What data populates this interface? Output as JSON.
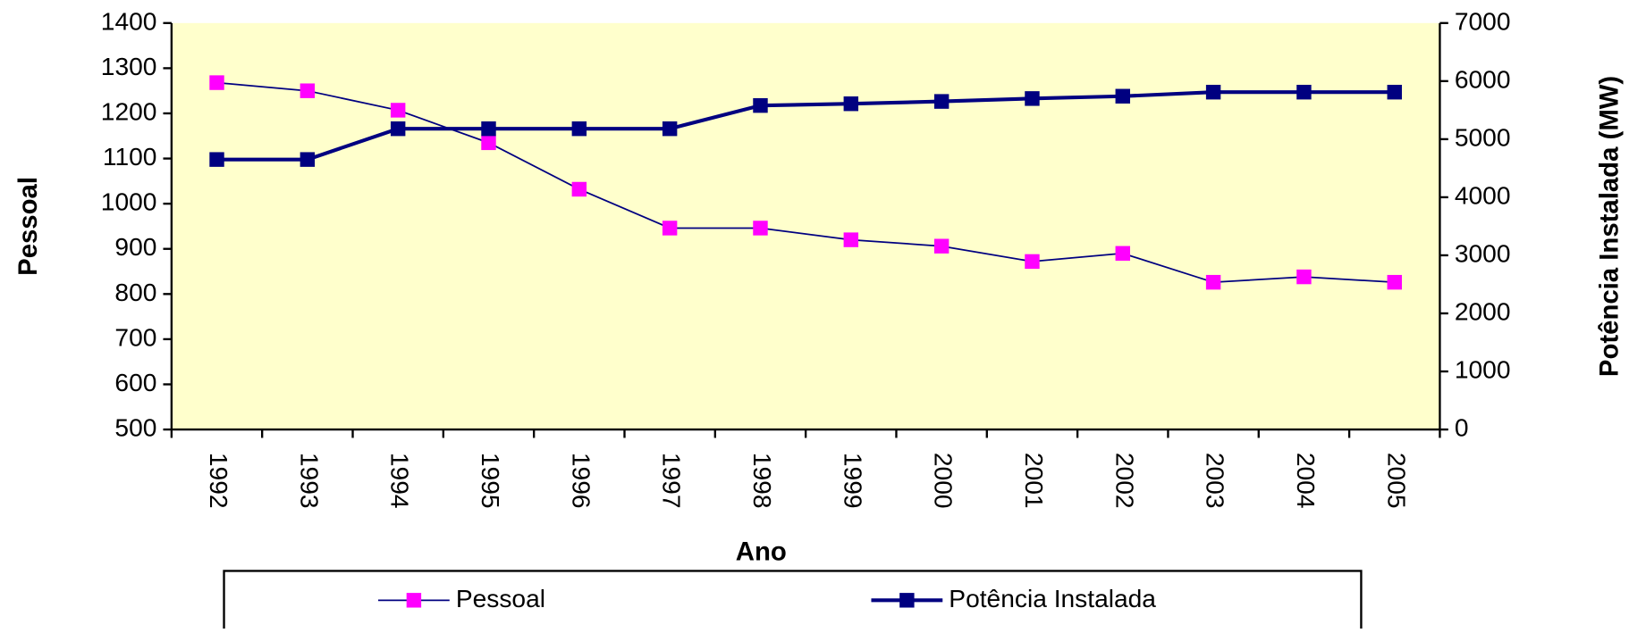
{
  "chart_data": {
    "type": "line",
    "xlabel": "Ano",
    "ylabel": "Pessoal",
    "y2label": "Potência Instalada (MW)",
    "categories": [
      "1992",
      "1993",
      "1994",
      "1995",
      "1996",
      "1997",
      "1998",
      "1999",
      "2000",
      "2001",
      "2002",
      "2003",
      "2004",
      "2005"
    ],
    "series": [
      {
        "name": "Pessoal",
        "color": "#000080",
        "marker_color": "#ff00ff",
        "values": [
          1268,
          1250,
          1207,
          1135,
          1032,
          946,
          946,
          920,
          906,
          872,
          890,
          826,
          838,
          826
        ]
      },
      {
        "name": "Potência Instalada",
        "color": "#000080",
        "marker_color": "#000080",
        "axis": "y2",
        "values": [
          4650,
          4650,
          5180,
          5180,
          5180,
          5180,
          5580,
          5610,
          5650,
          5700,
          5740,
          5810,
          5810,
          5810
        ]
      }
    ],
    "ylim": [
      500,
      1400
    ],
    "yticks": [
      500,
      600,
      700,
      800,
      900,
      1000,
      1100,
      1200,
      1300,
      1400
    ],
    "y2lim": [
      0,
      7000
    ],
    "y2ticks": [
      0,
      1000,
      2000,
      3000,
      4000,
      5000,
      6000,
      7000
    ],
    "background": "#ffffcc",
    "legend": "bottom"
  }
}
